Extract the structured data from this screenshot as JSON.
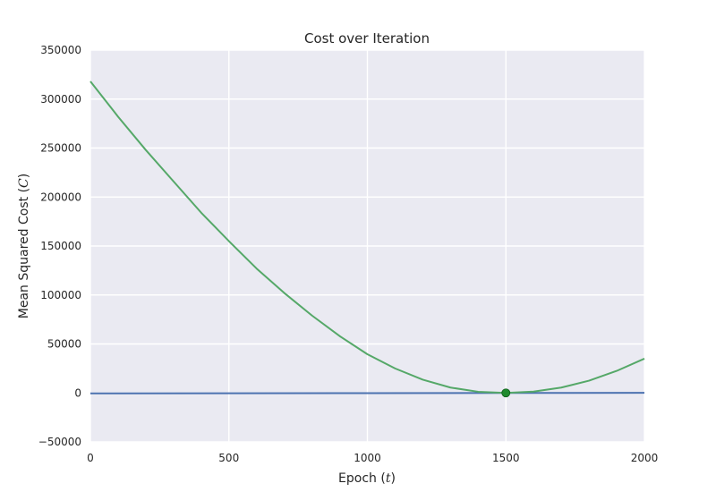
{
  "chart_data": {
    "type": "line",
    "title": "Cost over Iteration",
    "xlabel": "Epoch (t)",
    "xlabel_text": "Epoch (",
    "xlabel_var": "t",
    "xlabel_close": ")",
    "ylabel_text": "Mean Squared Cost (",
    "ylabel_var": "C",
    "ylabel_close": ")",
    "xlim": [
      0,
      2000
    ],
    "ylim": [
      -50000,
      350000
    ],
    "xticks": [
      0,
      500,
      1000,
      1500,
      2000
    ],
    "xtick_labels": [
      "0",
      "500",
      "1000",
      "1500",
      "2000"
    ],
    "yticks": [
      -50000,
      0,
      50000,
      100000,
      150000,
      200000,
      250000,
      300000,
      350000
    ],
    "ytick_labels": [
      "−50000",
      "0",
      "50000",
      "100000",
      "150000",
      "200000",
      "250000",
      "300000",
      "350000"
    ],
    "grid": true,
    "series": [
      {
        "color": "#4C72B0",
        "x": [
          0,
          500,
          1000,
          1500,
          2000
        ],
        "y": [
          -500,
          -350,
          -200,
          -50,
          100
        ]
      },
      {
        "color": "#55A868",
        "x": [
          0,
          100,
          200,
          300,
          400,
          500,
          600,
          700,
          800,
          900,
          1000,
          1100,
          1200,
          1300,
          1400,
          1500,
          1600,
          1700,
          1800,
          1900,
          2000
        ],
        "y": [
          318000,
          282000,
          248000,
          216000,
          184000,
          155000,
          127000,
          102000,
          79000,
          58000,
          39500,
          25000,
          13500,
          5500,
          1200,
          0,
          1400,
          5500,
          12500,
          22500,
          35000
        ]
      }
    ],
    "markers": [
      {
        "color": "#1F8A2E",
        "x": 1500,
        "y": 0
      }
    ]
  }
}
